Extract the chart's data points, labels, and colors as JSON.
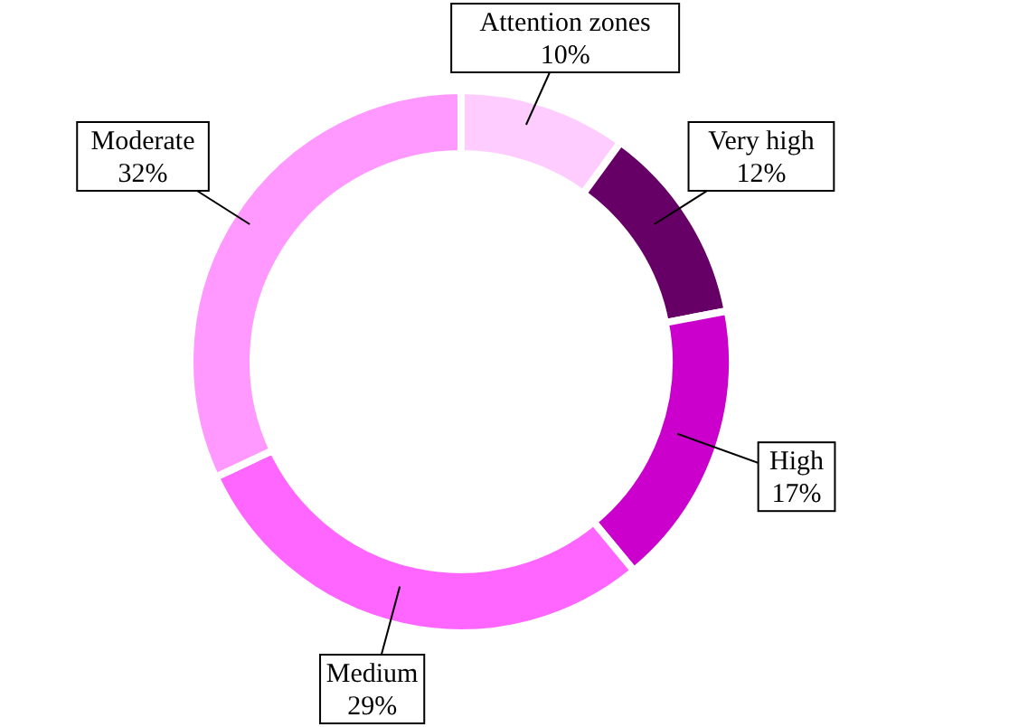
{
  "chart_data": {
    "type": "donut",
    "categories": [
      "Attention zones",
      "Very high",
      "High",
      "Medium",
      "Moderate"
    ],
    "values": [
      10,
      12,
      17,
      29,
      32
    ],
    "value_labels": [
      "10%",
      "12%",
      "17%",
      "29%",
      "32%"
    ],
    "colors": [
      "#ffccff",
      "#660066",
      "#cc00cc",
      "#ff66ff",
      "#ff99ff"
    ]
  }
}
